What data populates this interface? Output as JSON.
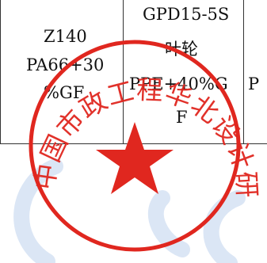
{
  "table": {
    "col1": {
      "lines": [
        "Z140",
        "PA66+30",
        "%GF"
      ]
    },
    "col2": {
      "lines": [
        "GPD15-5S",
        "叶轮",
        "PPE+40%G",
        "F"
      ]
    },
    "col3": {
      "top_fragment": " ",
      "mid_fragment": "P"
    }
  },
  "seal": {
    "text": "中国市政工程华北设计研究总院有限公司",
    "color": "#e0271f"
  },
  "watermark": {
    "color": "#dbe6f5"
  }
}
